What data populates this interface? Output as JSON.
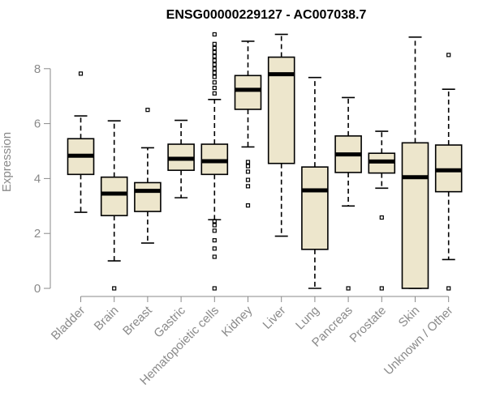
{
  "chart_data": {
    "type": "boxplot",
    "title": "ENSG00000229127 - AC007038.7",
    "xlabel": "",
    "ylabel": "Expression",
    "ylim": [
      0,
      9.3
    ],
    "yticks": [
      0,
      2,
      4,
      6,
      8
    ],
    "colors": {
      "box_fill": "#ede6cc",
      "stroke": "#000000",
      "axis": "#8a8a8a"
    },
    "categories": [
      "Bladder",
      "Brain",
      "Breast",
      "Gastric",
      "Hematopoietic cells",
      "Kidney",
      "Liver",
      "Lung",
      "Pancreas",
      "Prostate",
      "Skin",
      "Unknown / Other"
    ],
    "boxes": [
      {
        "name": "Bladder",
        "whislo": 2.77,
        "q1": 4.15,
        "med": 4.83,
        "q3": 5.45,
        "whishi": 6.28,
        "outliers": [
          7.82
        ]
      },
      {
        "name": "Brain",
        "whislo": 1.0,
        "q1": 2.65,
        "med": 3.45,
        "q3": 4.05,
        "whishi": 6.1,
        "outliers": [
          0.0
        ]
      },
      {
        "name": "Breast",
        "whislo": 1.65,
        "q1": 2.8,
        "med": 3.55,
        "q3": 3.85,
        "whishi": 5.12,
        "outliers": [
          6.5
        ]
      },
      {
        "name": "Gastric",
        "whislo": 3.3,
        "q1": 4.3,
        "med": 4.72,
        "q3": 5.25,
        "whishi": 6.12,
        "outliers": []
      },
      {
        "name": "Hematopoietic cells",
        "whislo": 2.5,
        "q1": 4.15,
        "med": 4.63,
        "q3": 5.25,
        "whishi": 6.88,
        "outliers": [
          0.0,
          1.15,
          1.45,
          1.75,
          2.1,
          2.3,
          2.45,
          7.1,
          7.3,
          7.5,
          7.7,
          7.85,
          8.0,
          8.15,
          8.3,
          8.45,
          8.6,
          8.75,
          8.9,
          9.25
        ]
      },
      {
        "name": "Kidney",
        "whislo": 5.15,
        "q1": 6.52,
        "med": 7.23,
        "q3": 7.75,
        "whishi": 9.0,
        "outliers": [
          3.02,
          3.72,
          3.95,
          4.25,
          4.45,
          4.6
        ]
      },
      {
        "name": "Liver",
        "whislo": 1.9,
        "q1": 4.55,
        "med": 7.8,
        "q3": 8.42,
        "whishi": 9.25,
        "outliers": []
      },
      {
        "name": "Lung",
        "whislo": 0.0,
        "q1": 1.42,
        "med": 3.57,
        "q3": 4.42,
        "whishi": 7.68,
        "outliers": []
      },
      {
        "name": "Pancreas",
        "whislo": 3.0,
        "q1": 4.22,
        "med": 4.88,
        "q3": 5.55,
        "whishi": 6.95,
        "outliers": [
          0.0
        ]
      },
      {
        "name": "Prostate",
        "whislo": 3.65,
        "q1": 4.2,
        "med": 4.62,
        "q3": 4.92,
        "whishi": 5.72,
        "outliers": [
          0.0,
          2.58
        ]
      },
      {
        "name": "Skin",
        "whislo": 0.0,
        "q1": 0.0,
        "med": 4.05,
        "q3": 5.3,
        "whishi": 9.15,
        "outliers": []
      },
      {
        "name": "Unknown / Other",
        "whislo": 1.05,
        "q1": 3.52,
        "med": 4.3,
        "q3": 5.22,
        "whishi": 7.25,
        "outliers": [
          0.0,
          8.5
        ]
      }
    ]
  }
}
